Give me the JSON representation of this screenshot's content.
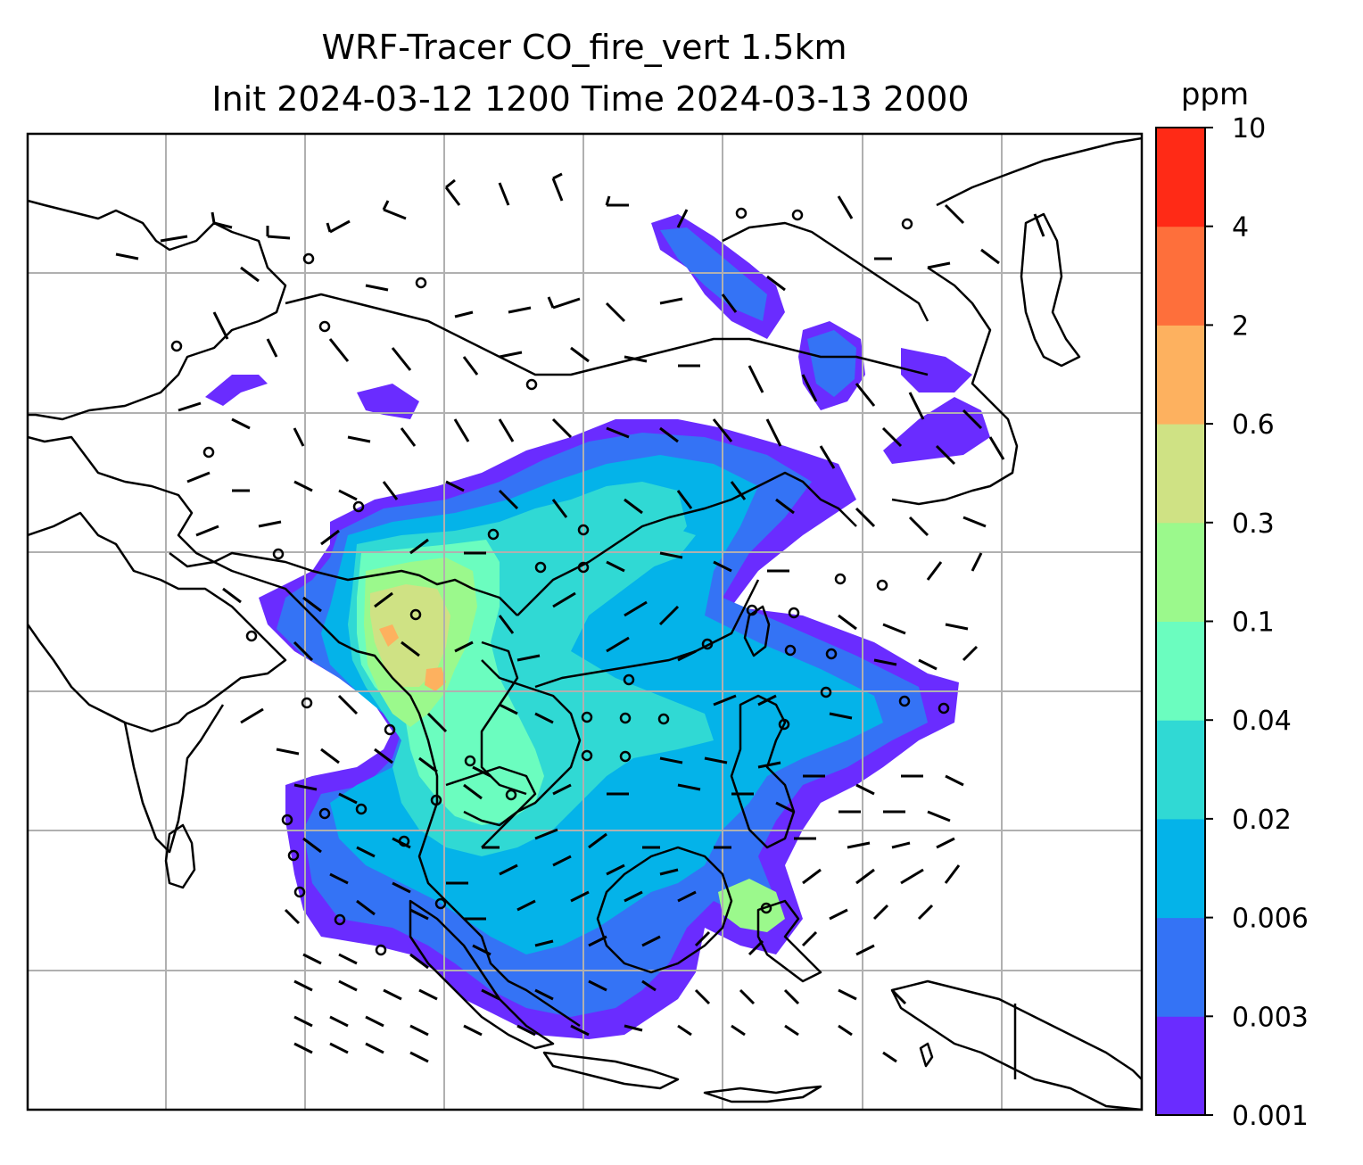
{
  "title": {
    "line1": "WRF-Tracer CO_fire_vert 1.5km",
    "line2": "Init 2024-03-12 1200 Time 2024-03-13 2000"
  },
  "colorbar": {
    "unit": "ppm",
    "levels": [
      "0.001",
      "0.003",
      "0.006",
      "0.02",
      "0.04",
      "0.1",
      "0.3",
      "0.6",
      "2",
      "4",
      "10"
    ],
    "colors": [
      "#6a2cff",
      "#3473f5",
      "#04b3e9",
      "#30d9d4",
      "#6bfdbf",
      "#9bf98c",
      "#cfe284",
      "#fdb15f",
      "#fe6f3b",
      "#ff2a16"
    ]
  }
}
